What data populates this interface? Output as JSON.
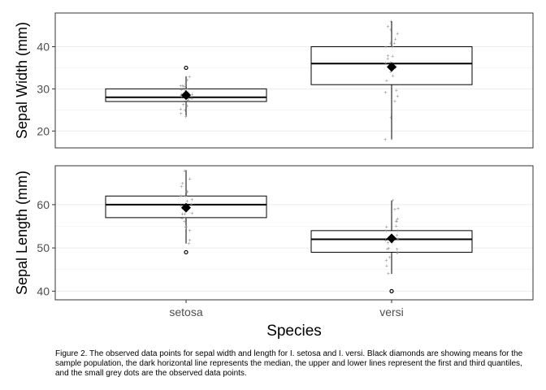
{
  "chart_data": {
    "type": "box",
    "xlabel": "Species",
    "categories": [
      "setosa",
      "versi"
    ],
    "panels": [
      {
        "ylabel": "Sepal Width (mm)",
        "ylim": [
          16,
          48
        ],
        "yticks": [
          20,
          30,
          40
        ],
        "grid": true,
        "boxes": [
          {
            "category": "setosa",
            "q1": 27,
            "median": 28,
            "q3": 30,
            "mean": 28.5,
            "whisker_low": 23.5,
            "whisker_high": 33,
            "outliers": [
              35
            ],
            "points": [
              23.5,
              24,
              25,
              25.5,
              26,
              26.5,
              27,
              27,
              27.5,
              28,
              28,
              28,
              28.5,
              28.5,
              29,
              29,
              29,
              29.5,
              30,
              30,
              30.5,
              31,
              31,
              31,
              32,
              33
            ]
          },
          {
            "category": "versi",
            "q1": 31,
            "median": 36,
            "q3": 40,
            "mean": 35.2,
            "whisker_low": 18,
            "whisker_high": 46,
            "outliers": [],
            "points": [
              18,
              23,
              27,
              28,
              29,
              30,
              32,
              33,
              34,
              35,
              35,
              35,
              36,
              36,
              37,
              38,
              38,
              40,
              40,
              41,
              41,
              42,
              43,
              44,
              45,
              46
            ]
          }
        ]
      },
      {
        "ylabel": "Sepal Length (mm)",
        "ylim": [
          38,
          69
        ],
        "yticks": [
          40,
          50,
          60
        ],
        "grid": true,
        "boxes": [
          {
            "category": "setosa",
            "q1": 57,
            "median": 60,
            "q3": 62,
            "mean": 59.3,
            "whisker_low": 51,
            "whisker_high": 68,
            "outliers": [
              49
            ],
            "points": [
              51,
              52,
              54,
              55,
              55,
              56,
              57,
              57,
              58,
              58,
              58,
              59,
              60,
              60,
              60,
              61,
              61,
              62,
              62,
              63,
              63,
              64,
              65,
              66,
              68
            ]
          },
          {
            "category": "versi",
            "q1": 49,
            "median": 52,
            "q3": 54,
            "mean": 52.2,
            "whisker_low": 44,
            "whisker_high": 61,
            "outliers": [
              40
            ],
            "points": [
              44,
              46,
              47,
              48,
              49,
              49,
              50,
              50,
              50,
              51,
              51,
              52,
              52,
              52,
              53,
              53,
              54,
              54,
              55,
              55,
              56,
              56,
              57,
              59,
              59,
              61
            ]
          }
        ]
      }
    ]
  },
  "caption": "Figure 2. The observed data points for sepal width and length for I. setosa and I. versi. Black diamonds are showing means for the sample population, the dark horizontal line represents the median, the upper and lower lines represent the first and third quantiles, and the small grey dots are the observed data points.",
  "colors": {
    "box": "#000000",
    "grid": "#ebebeb",
    "points": "#8c8c8c",
    "axis_text": "#4d4d4d"
  }
}
